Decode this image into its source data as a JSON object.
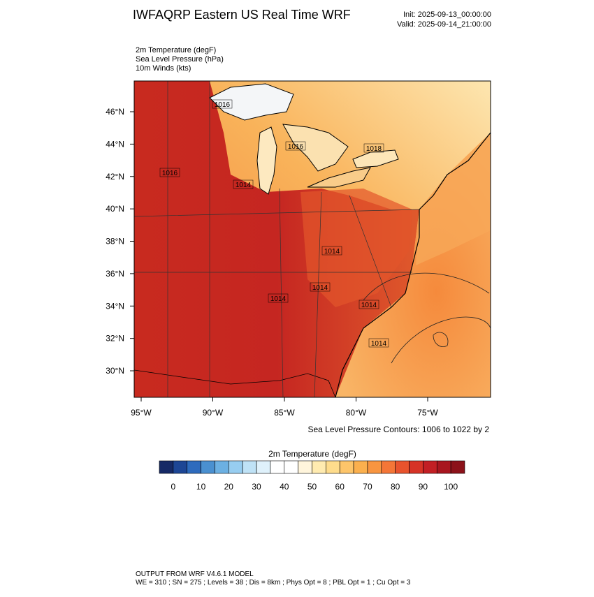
{
  "header": {
    "title": "IWFAQRP Eastern US Real Time WRF",
    "init": "Init: 2025-09-13_00:00:00",
    "valid": "Valid: 2025-09-14_21:00:00"
  },
  "fields": [
    "2m Temperature   (degF)",
    "Sea Level Pressure   (hPa)",
    "10m Winds   (kts)"
  ],
  "map": {
    "lon_ticks": [
      {
        "value": -95,
        "label": "95°W"
      },
      {
        "value": -90,
        "label": "90°W"
      },
      {
        "value": -85,
        "label": "85°W"
      },
      {
        "value": -80,
        "label": "80°W"
      },
      {
        "value": -75,
        "label": "75°W"
      }
    ],
    "lat_ticks": [
      {
        "value": 46,
        "label": "46°N"
      },
      {
        "value": 44,
        "label": "44°N"
      },
      {
        "value": 42,
        "label": "42°N"
      },
      {
        "value": 40,
        "label": "40°N"
      },
      {
        "value": 38,
        "label": "38°N"
      },
      {
        "value": 36,
        "label": "36°N"
      },
      {
        "value": 34,
        "label": "34°N"
      },
      {
        "value": 32,
        "label": "32°N"
      },
      {
        "value": 30,
        "label": "30°N"
      }
    ],
    "isobar_labels": [
      "1016",
      "1016",
      "1018",
      "1016",
      "1014",
      "1014",
      "1014",
      "1014",
      "1014",
      "1014"
    ],
    "contour_note": "Sea Level Pressure Contours: 1006 to 1022 by 2"
  },
  "colorbar": {
    "title": "2m Temperature  (degF)",
    "range": [
      -5,
      105
    ],
    "colors": [
      "#162a66",
      "#1d4695",
      "#2e6bbd",
      "#4a90d0",
      "#6cb0e2",
      "#97cdf0",
      "#bfe2f6",
      "#dff1fb",
      "#ffffff",
      "#ffffff",
      "#fff5dc",
      "#ffebb0",
      "#fedc8c",
      "#fdc56a",
      "#fbb04e",
      "#f89540",
      "#f47637",
      "#e8532d",
      "#d63326",
      "#c21f24",
      "#a8161f",
      "#8c121a"
    ],
    "ticks": [
      0,
      10,
      20,
      30,
      40,
      50,
      60,
      70,
      80,
      90,
      100
    ]
  },
  "footer": [
    "OUTPUT FROM WRF V4.6.1 MODEL",
    "WE = 310 ; SN = 275 ; Levels = 38 ; Dis = 8km ; Phys Opt = 8 ; PBL Opt = 1 ; Cu Opt = 3"
  ]
}
